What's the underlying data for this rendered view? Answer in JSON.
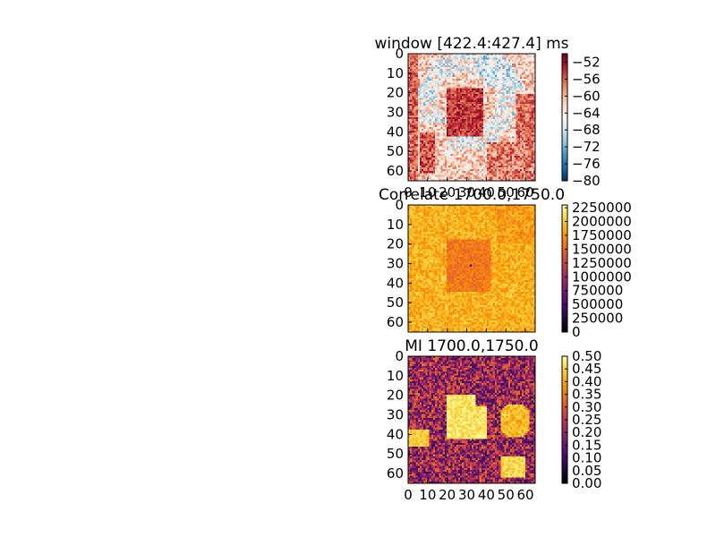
{
  "chart_data": [
    {
      "type": "heatmap",
      "title": "window [422.4:427.4] ms",
      "colormap": "RdBu_r",
      "x_ticks": [
        0,
        10,
        20,
        30,
        40,
        50,
        60
      ],
      "y_ticks": [
        0,
        10,
        20,
        30,
        40,
        50,
        60
      ],
      "xlim": [
        0,
        65
      ],
      "ylim": [
        65,
        0
      ],
      "colorbar": {
        "range": [
          -80,
          -50
        ],
        "ticks": [
          -52,
          -56,
          -60,
          -64,
          -68,
          -72,
          -76,
          -80
        ],
        "tick_labels": [
          "−52",
          "−56",
          "−60",
          "−64",
          "−68",
          "−72",
          "−76",
          "−80"
        ]
      }
    },
    {
      "type": "heatmap",
      "title": "Correlate 1700.0,1750.0",
      "colormap": "inferno",
      "x_ticks": [
        0,
        10,
        20,
        30,
        40,
        50,
        60
      ],
      "x_tick_labels_visible": false,
      "y_ticks": [
        0,
        10,
        20,
        30,
        40,
        50,
        60
      ],
      "xlim": [
        0,
        65
      ],
      "ylim": [
        65,
        0
      ],
      "colorbar": {
        "range": [
          0,
          2300000
        ],
        "ticks": [
          2250000,
          2000000,
          1750000,
          1500000,
          1250000,
          1000000,
          750000,
          500000,
          250000,
          0
        ],
        "tick_labels": [
          "2250000",
          "2000000",
          "1750000",
          "1500000",
          "1250000",
          "1000000",
          "750000",
          "500000",
          "250000",
          "0"
        ]
      }
    },
    {
      "type": "heatmap",
      "title": "MI 1700.0,1750.0",
      "colormap": "inferno",
      "x_ticks": [
        0,
        10,
        20,
        30,
        40,
        50,
        60
      ],
      "y_ticks": [
        0,
        10,
        20,
        30,
        40,
        50,
        60
      ],
      "xlim": [
        0,
        65
      ],
      "ylim": [
        65,
        0
      ],
      "colorbar": {
        "range": [
          0,
          0.5
        ],
        "ticks": [
          0.5,
          0.45,
          0.4,
          0.35,
          0.3,
          0.25,
          0.2,
          0.15,
          0.1,
          0.05,
          0.0
        ],
        "tick_labels": [
          "0.50",
          "0.45",
          "0.40",
          "0.35",
          "0.30",
          "0.25",
          "0.20",
          "0.15",
          "0.10",
          "0.05",
          "0.00"
        ]
      }
    }
  ]
}
